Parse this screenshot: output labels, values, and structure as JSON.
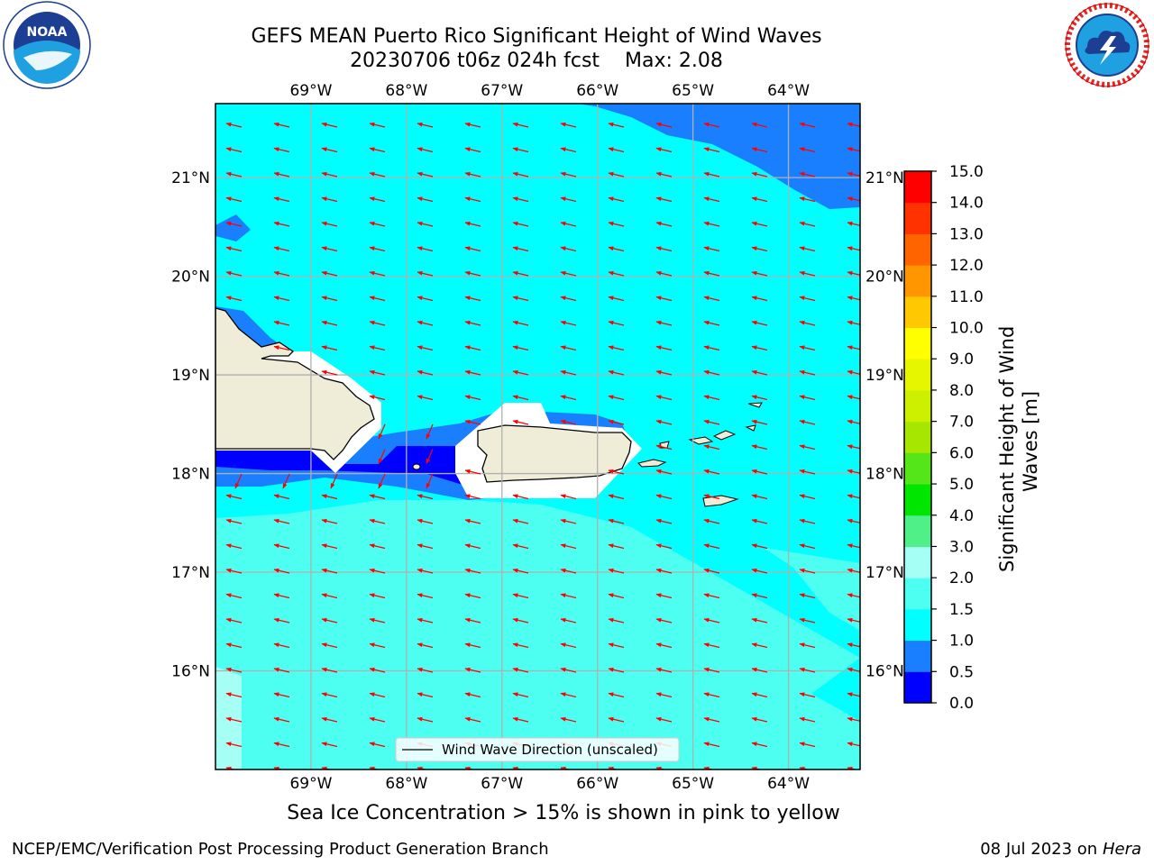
{
  "header": {
    "title": "GEFS MEAN Puerto Rico Significant Height of Wind Waves",
    "subtitle_date": "20230706 t06z 024h fcst",
    "subtitle_max": "Max: 2.08"
  },
  "logos": {
    "left": "noaa-logo",
    "right": "national-weather-service-logo"
  },
  "map": {
    "lon_range": [
      -70.0,
      -63.25
    ],
    "lat_range": [
      15.0,
      21.75
    ],
    "lon_ticks": [
      "69°W",
      "68°W",
      "67°W",
      "66°W",
      "65°W",
      "64°W"
    ],
    "lat_ticks": [
      "21°N",
      "20°N",
      "19°N",
      "18°N",
      "17°N",
      "16°N"
    ],
    "legend_label": "Wind Wave Direction (unscaled)",
    "arrow_color": "#ff0000",
    "land_color": "#efedd8"
  },
  "colorbar": {
    "label_line1": "Significant Height of Wind",
    "label_line2": "Waves [m]",
    "ticks": [
      "0.0",
      "0.5",
      "1.0",
      "1.5",
      "2.0",
      "3.0",
      "4.0",
      "5.0",
      "6.0",
      "7.0",
      "8.0",
      "9.0",
      "10.0",
      "11.0",
      "12.0",
      "13.0",
      "14.0",
      "15.0"
    ],
    "colors": [
      "#0000ff",
      "#1a7fff",
      "#00ffff",
      "#4dfff0",
      "#a6fff5",
      "#50f088",
      "#00e600",
      "#55e61a",
      "#a6e600",
      "#ccf000",
      "#e6f500",
      "#ffff00",
      "#ffc800",
      "#ff9600",
      "#ff6400",
      "#ff3200",
      "#ff0000"
    ]
  },
  "footer": {
    "note": "Sea Ice Concentration > 15% is shown in pink to yellow",
    "left": "NCEP/EMC/Verification Post Processing Product Generation Branch",
    "right_date": "08 Jul 2023 on",
    "right_host": "Hera"
  }
}
